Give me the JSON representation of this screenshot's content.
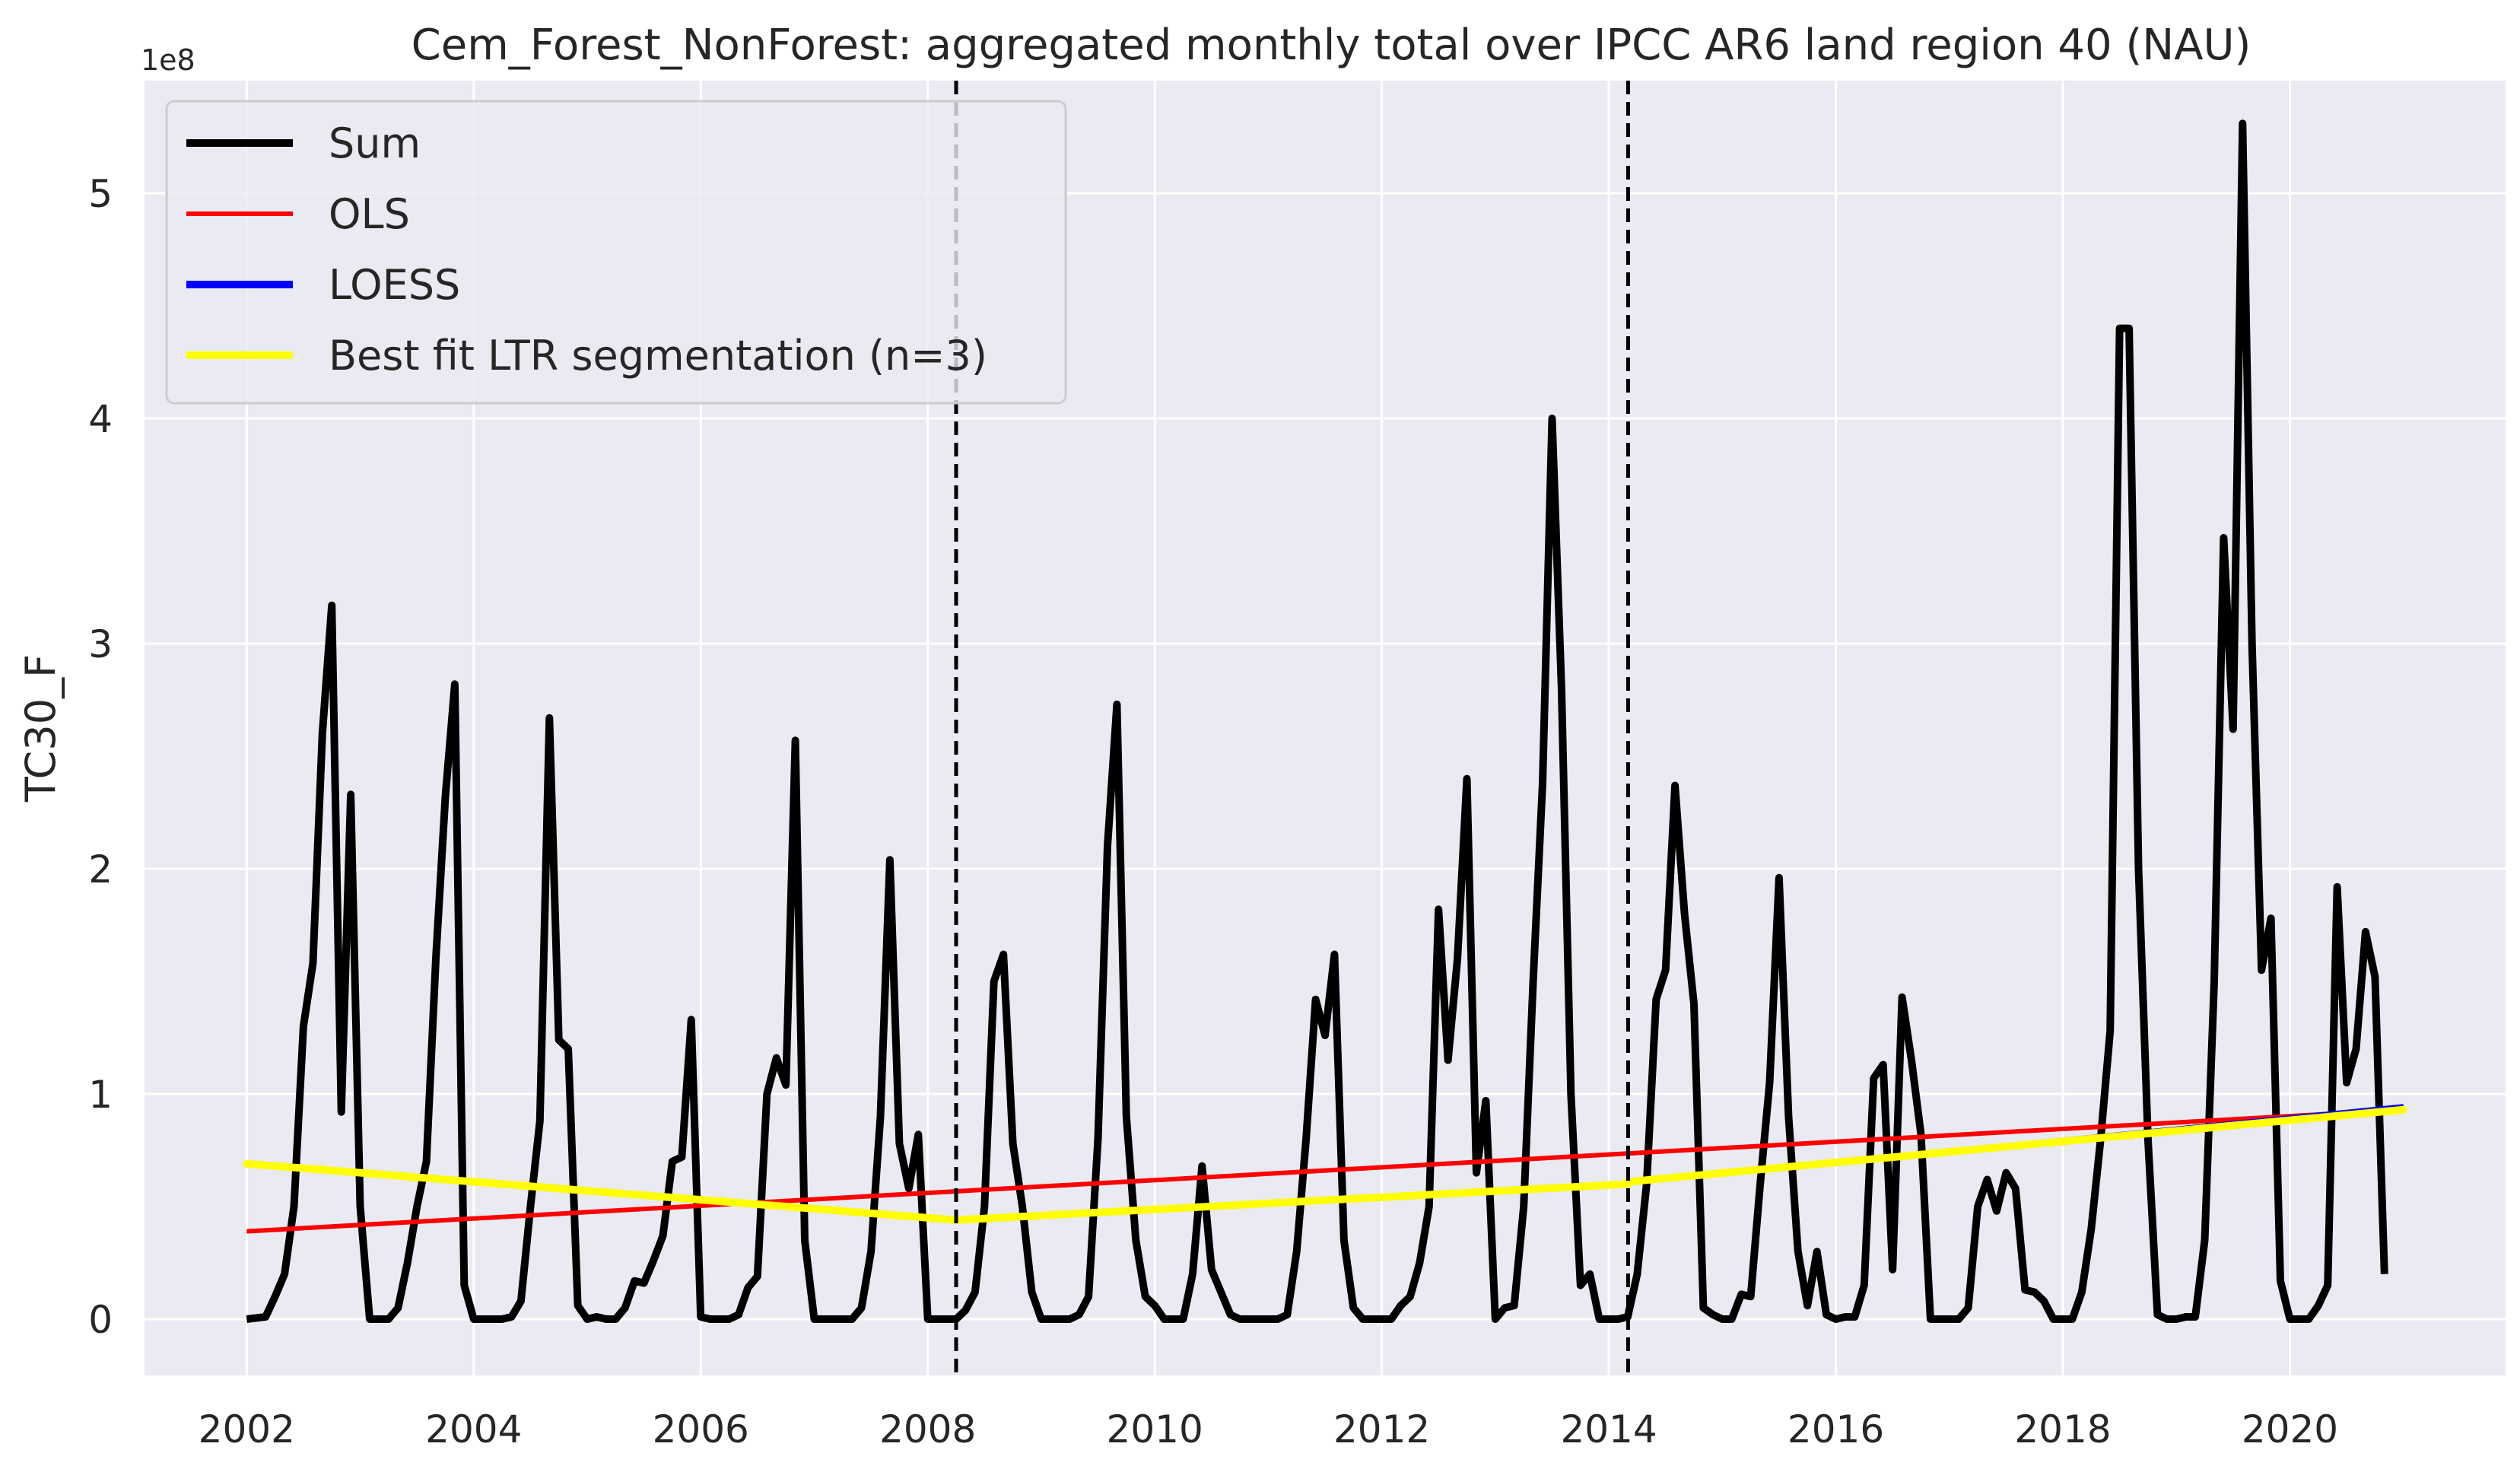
{
  "chart_data": {
    "type": "line",
    "title": "Cem_Forest_NonForest: aggregated monthly total over IPCC AR6 land region 40 (NAU)",
    "xlabel": "",
    "ylabel": "TC30_F",
    "y_offset_label": "1e8",
    "xlim": [
      2001.1,
      2021.9
    ],
    "ylim": [
      -0.25,
      5.5
    ],
    "y_unit_multiplier": 100000000,
    "xticks": [
      {
        "value": 2002,
        "label": "2002"
      },
      {
        "value": 2004,
        "label": "2004"
      },
      {
        "value": 2006,
        "label": "2006"
      },
      {
        "value": 2008,
        "label": "2008"
      },
      {
        "value": 2010,
        "label": "2010"
      },
      {
        "value": 2012,
        "label": "2012"
      },
      {
        "value": 2014,
        "label": "2014"
      },
      {
        "value": 2016,
        "label": "2016"
      },
      {
        "value": 2018,
        "label": "2018"
      },
      {
        "value": 2020,
        "label": "2020"
      }
    ],
    "yticks": [
      {
        "value": 0,
        "label": "0"
      },
      {
        "value": 1,
        "label": "1"
      },
      {
        "value": 2,
        "label": "2"
      },
      {
        "value": 3,
        "label": "3"
      },
      {
        "value": 4,
        "label": "4"
      },
      {
        "value": 5,
        "label": "5"
      }
    ],
    "grid": true,
    "legend_position": "top-left",
    "vlines": [
      2008.25,
      2014.17
    ],
    "series": [
      {
        "name": "Sum",
        "color": "#000000",
        "kind": "monthly",
        "start_year": 2002,
        "values": [
          0.0,
          0.005,
          0.01,
          0.1,
          0.2,
          0.5,
          1.3,
          1.58,
          2.6,
          3.17,
          0.92,
          2.33,
          0.5,
          0.0,
          0.0,
          0.0,
          0.05,
          0.25,
          0.5,
          0.7,
          1.6,
          2.32,
          2.82,
          0.15,
          0.0,
          0.0,
          0.0,
          0.0,
          0.01,
          0.08,
          0.5,
          0.88,
          2.67,
          1.24,
          1.2,
          0.06,
          0.0,
          0.01,
          0.0,
          0.0,
          0.05,
          0.17,
          0.16,
          0.26,
          0.37,
          0.7,
          0.72,
          1.33,
          0.01,
          0.0,
          0.0,
          0.0,
          0.02,
          0.14,
          0.19,
          1.0,
          1.16,
          1.04,
          2.57,
          0.35,
          0.0,
          0.0,
          0.0,
          0.0,
          0.0,
          0.05,
          0.3,
          0.9,
          2.04,
          0.78,
          0.58,
          0.82,
          0.0,
          0.0,
          0.0,
          0.0,
          0.04,
          0.12,
          0.5,
          1.5,
          1.62,
          0.78,
          0.5,
          0.12,
          0.0,
          0.0,
          0.0,
          0.0,
          0.02,
          0.1,
          0.8,
          2.1,
          2.73,
          0.9,
          0.35,
          0.1,
          0.06,
          0.0,
          0.0,
          0.0,
          0.2,
          0.68,
          0.22,
          0.12,
          0.02,
          0.0,
          0.0,
          0.0,
          0.0,
          0.0,
          0.02,
          0.3,
          0.8,
          1.42,
          1.26,
          1.62,
          0.35,
          0.05,
          0.0,
          0.0,
          0.0,
          0.0,
          0.06,
          0.1,
          0.25,
          0.5,
          1.82,
          1.15,
          1.6,
          2.4,
          0.65,
          0.97,
          0.0,
          0.05,
          0.06,
          0.5,
          1.5,
          2.38,
          4.0,
          2.8,
          1.0,
          0.15,
          0.2,
          0.0,
          0.0,
          0.0,
          0.01,
          0.2,
          0.6,
          1.42,
          1.55,
          2.37,
          1.8,
          1.4,
          0.05,
          0.02,
          0.0,
          0.0,
          0.11,
          0.1,
          0.6,
          1.05,
          1.96,
          0.9,
          0.3,
          0.06,
          0.3,
          0.02,
          0.0,
          0.01,
          0.01,
          0.15,
          1.07,
          1.13,
          0.22,
          1.43,
          1.15,
          0.82,
          0.0,
          0.0,
          0.0,
          0.0,
          0.05,
          0.5,
          0.62,
          0.48,
          0.65,
          0.58,
          0.13,
          0.12,
          0.08,
          0.0,
          0.0,
          0.0,
          0.12,
          0.4,
          0.8,
          1.28,
          4.4,
          4.4,
          2.0,
          0.8,
          0.02,
          0.0,
          0.0,
          0.01,
          0.01,
          0.35,
          1.5,
          3.47,
          2.62,
          5.31,
          3.0,
          1.55,
          1.78,
          0.17,
          0.0,
          0.0,
          0.0,
          0.06,
          0.15,
          1.92,
          1.05,
          1.2,
          1.72,
          1.52,
          0.2
        ]
      },
      {
        "name": "OLS",
        "color": "#ff0000",
        "kind": "line",
        "points": [
          [
            2002.0,
            0.39
          ],
          [
            2021.0,
            0.93
          ]
        ]
      },
      {
        "name": "LOESS",
        "color": "#0000ff",
        "kind": "line",
        "points": [
          [
            2002.0,
            0.69
          ],
          [
            2008.25,
            0.44
          ],
          [
            2014.17,
            0.61
          ],
          [
            2021.0,
            0.95
          ]
        ]
      },
      {
        "name": "Best fit LTR segmentation (n=3)",
        "color": "#ffff00",
        "kind": "segments",
        "segments": [
          [
            [
              2002.0,
              0.69
            ],
            [
              2008.25,
              0.44
            ]
          ],
          [
            [
              2008.25,
              0.44
            ],
            [
              2014.17,
              0.6
            ]
          ],
          [
            [
              2014.17,
              0.61
            ],
            [
              2021.0,
              0.93
            ]
          ]
        ]
      }
    ]
  }
}
